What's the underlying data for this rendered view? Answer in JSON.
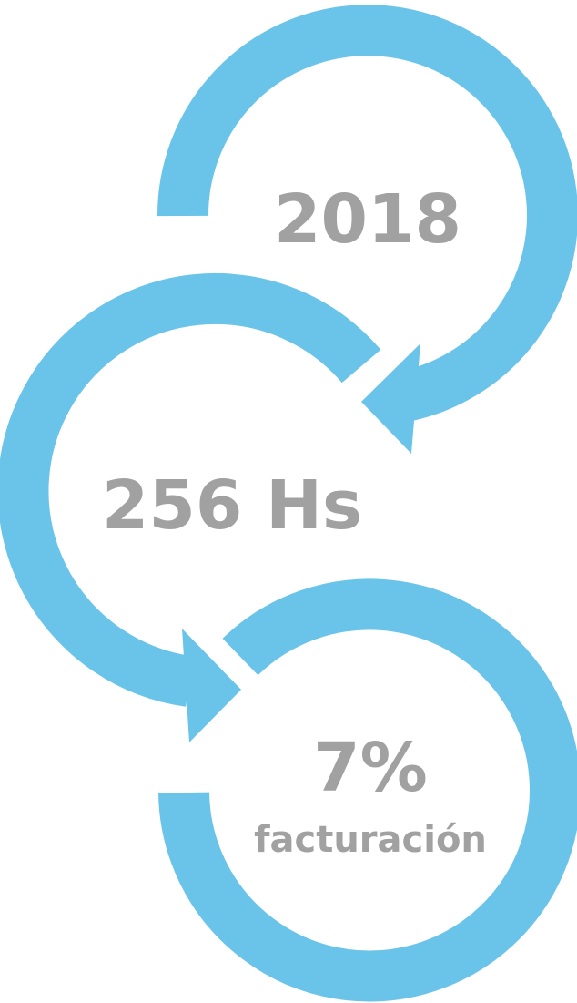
{
  "colors": {
    "ring": "#6ac4ea",
    "text": "#a1a1a1",
    "background": "#ffffff"
  },
  "cycles": [
    {
      "value": "2018"
    },
    {
      "value": "256 Hs"
    },
    {
      "value": "7%",
      "caption": "facturación"
    }
  ]
}
